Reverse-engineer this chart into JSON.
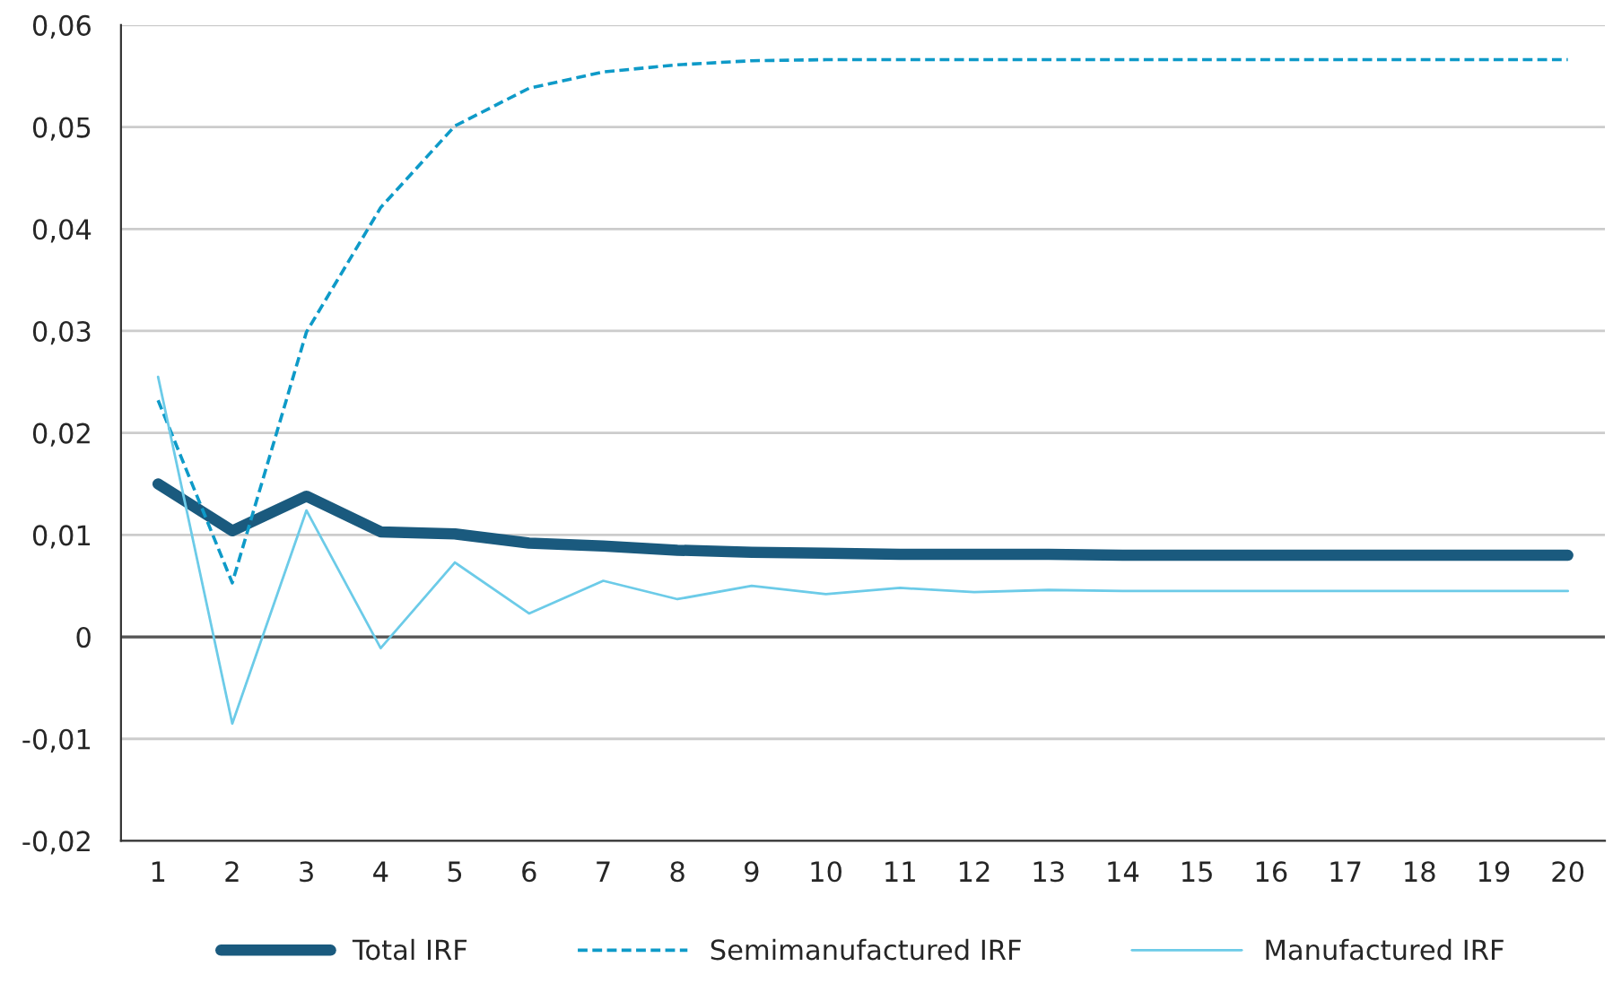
{
  "chart_data": {
    "type": "line",
    "categories": [
      "1",
      "2",
      "3",
      "4",
      "5",
      "6",
      "7",
      "8",
      "9",
      "10",
      "11",
      "12",
      "13",
      "14",
      "15",
      "16",
      "17",
      "18",
      "19",
      "20"
    ],
    "series": [
      {
        "name": "Total IRF",
        "color": "#1a5a7e",
        "line_style": "solid",
        "values": [
          0.015,
          0.0104,
          0.0138,
          0.0103,
          0.0101,
          0.0092,
          0.0089,
          0.0085,
          0.0083,
          0.0082,
          0.0081,
          0.0081,
          0.0081,
          0.008,
          0.008,
          0.008,
          0.008,
          0.008,
          0.008,
          0.008
        ]
      },
      {
        "name": "Semimanufactured IRF",
        "color": "#0e9ac8",
        "line_style": "dashed",
        "values": [
          0.0232,
          0.0053,
          0.0299,
          0.0421,
          0.0501,
          0.0538,
          0.0554,
          0.0561,
          0.0565,
          0.0566,
          0.0566,
          0.0566,
          0.0566,
          0.0566,
          0.0566,
          0.0566,
          0.0566,
          0.0566,
          0.0566,
          0.0566
        ]
      },
      {
        "name": "Manufactured IRF",
        "color": "#6ccbe8",
        "line_style": "solid",
        "values": [
          0.0255,
          -0.0085,
          0.0124,
          -0.0011,
          0.0073,
          0.0023,
          0.0055,
          0.0037,
          0.005,
          0.0042,
          0.0048,
          0.0044,
          0.0046,
          0.0045,
          0.0045,
          0.0045,
          0.0045,
          0.0045,
          0.0045,
          0.0045
        ]
      }
    ],
    "ylim": [
      -0.02,
      0.06
    ],
    "yticks": [
      {
        "value": -0.02,
        "label": "-0,02"
      },
      {
        "value": -0.01,
        "label": "-0,01"
      },
      {
        "value": 0,
        "label": "0"
      },
      {
        "value": 0.01,
        "label": "0,01"
      },
      {
        "value": 0.02,
        "label": "0,02"
      },
      {
        "value": 0.03,
        "label": "0,03"
      },
      {
        "value": 0.04,
        "label": "0,04"
      },
      {
        "value": 0.05,
        "label": "0,05"
      },
      {
        "value": 0.06,
        "label": "0,06"
      }
    ],
    "ref_lines": [
      {
        "axis": "y",
        "value": 0,
        "color": "#555555"
      }
    ],
    "grid": "y",
    "legend": "bottom",
    "marker": "none"
  }
}
